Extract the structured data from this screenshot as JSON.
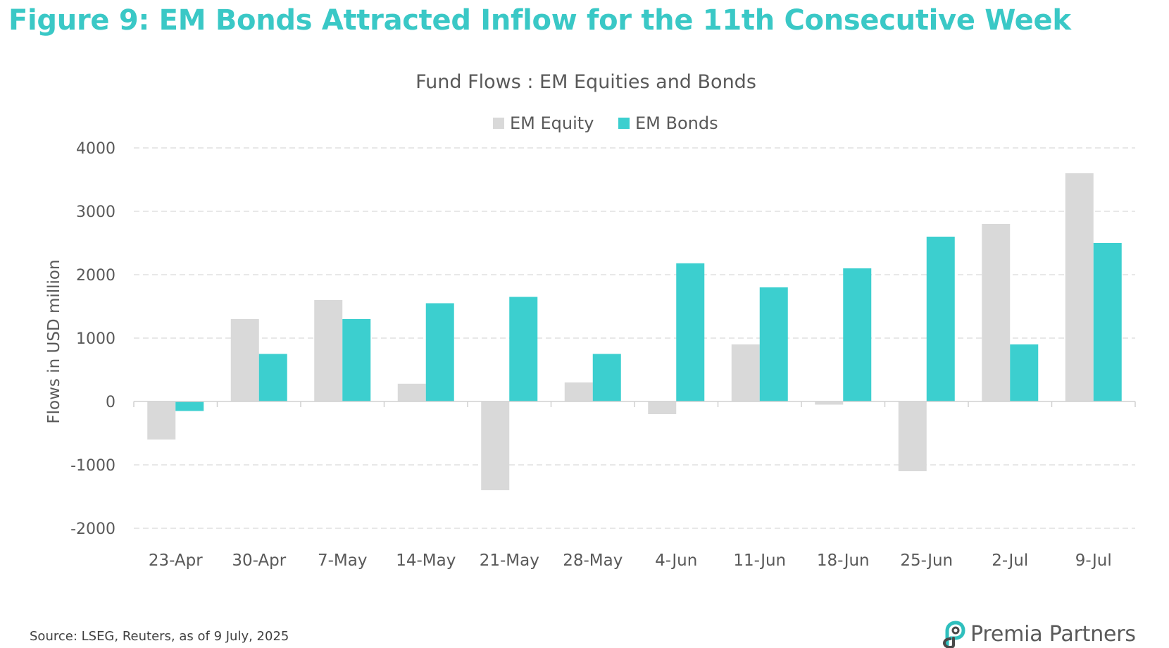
{
  "figure_title": "Figure 9: EM Bonds Attracted Inflow for the 11th Consecutive Week",
  "source": "Source: LSEG, Reuters, as of 9 July, 2025",
  "logo": {
    "name": "Premia Partners",
    "icon": "premia-partners-logo-icon"
  },
  "colors": {
    "title": "#3ac8c6",
    "equity": "#d9d9d9",
    "bonds": "#3ccfcf",
    "grid": "#d9d9d9",
    "text": "#595959"
  },
  "chart_data": {
    "type": "bar",
    "title": "Fund Flows : EM Equities and Bonds",
    "ylabel": "Flows in USD million",
    "xlabel": "",
    "ylim": [
      -2000,
      4000
    ],
    "yticks": [
      -2000,
      -1000,
      0,
      1000,
      2000,
      3000,
      4000
    ],
    "legend_position": "top-center",
    "grid": true,
    "categories": [
      "23-Apr",
      "30-Apr",
      "7-May",
      "14-May",
      "21-May",
      "28-May",
      "4-Jun",
      "11-Jun",
      "18-Jun",
      "25-Jun",
      "2-Jul",
      "9-Jul"
    ],
    "series": [
      {
        "name": "EM Equity",
        "values": [
          -600,
          1300,
          1600,
          280,
          -1400,
          300,
          -200,
          900,
          -50,
          -1100,
          2800,
          3600
        ]
      },
      {
        "name": "EM Bonds",
        "values": [
          -150,
          750,
          1300,
          1550,
          1650,
          750,
          2180,
          1800,
          2100,
          2600,
          900,
          2500
        ]
      }
    ]
  }
}
